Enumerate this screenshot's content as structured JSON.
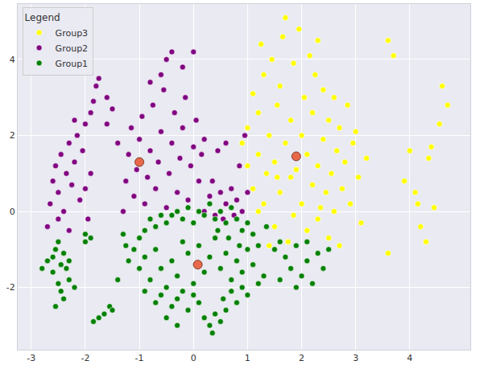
{
  "chart_data": {
    "type": "scatter",
    "legend_title": "Legend",
    "legend": "upper left",
    "grid": true,
    "xlim": [
      -3.25,
      5.12
    ],
    "xticks": [
      -3,
      -2,
      -1,
      0,
      1,
      2,
      3,
      4
    ],
    "ylim": [
      -3.64,
      5.46
    ],
    "yticks": [
      -2,
      0,
      2,
      4
    ],
    "series": [
      {
        "name": "Group3",
        "color": "#ffff00",
        "marker": "circle",
        "points": [
          [
            0.9,
            1.8
          ],
          [
            1.0,
            1.2
          ],
          [
            1.0,
            2.2
          ],
          [
            1.1,
            0.6
          ],
          [
            1.1,
            3.1
          ],
          [
            1.2,
            1.5
          ],
          [
            1.2,
            2.6
          ],
          [
            1.3,
            0.2
          ],
          [
            1.3,
            3.6
          ],
          [
            1.35,
            1.0
          ],
          [
            1.4,
            2.0
          ],
          [
            1.45,
            4.0
          ],
          [
            1.5,
            -0.4
          ],
          [
            1.5,
            1.3
          ],
          [
            1.55,
            2.8
          ],
          [
            1.6,
            0.5
          ],
          [
            1.6,
            3.3
          ],
          [
            1.65,
            4.6
          ],
          [
            1.7,
            1.8
          ],
          [
            1.7,
            5.1
          ],
          [
            1.75,
            -0.8
          ],
          [
            1.8,
            0.9
          ],
          [
            1.8,
            2.4
          ],
          [
            1.85,
            3.9
          ],
          [
            1.9,
            1.1
          ],
          [
            1.95,
            4.8
          ],
          [
            2.0,
            0.2
          ],
          [
            2.0,
            2.0
          ],
          [
            2.05,
            3.0
          ],
          [
            2.1,
            -0.5
          ],
          [
            2.1,
            1.5
          ],
          [
            2.15,
            4.1
          ],
          [
            2.2,
            0.7
          ],
          [
            2.2,
            2.6
          ],
          [
            2.25,
            3.6
          ],
          [
            2.3,
            -0.2
          ],
          [
            2.3,
            1.2
          ],
          [
            2.35,
            0.1
          ],
          [
            2.4,
            1.9
          ],
          [
            2.4,
            3.2
          ],
          [
            2.45,
            0.5
          ],
          [
            2.5,
            -0.7
          ],
          [
            2.5,
            2.4
          ],
          [
            2.55,
            1.0
          ],
          [
            2.6,
            0.0
          ],
          [
            2.6,
            3.0
          ],
          [
            2.65,
            1.6
          ],
          [
            2.7,
            -0.9
          ],
          [
            2.7,
            2.2
          ],
          [
            2.75,
            0.6
          ],
          [
            2.8,
            1.3
          ],
          [
            2.85,
            2.8
          ],
          [
            2.9,
            0.2
          ],
          [
            2.95,
            1.8
          ],
          [
            3.0,
            2.1
          ],
          [
            3.05,
            0.9
          ],
          [
            3.1,
            -0.3
          ],
          [
            3.2,
            1.4
          ],
          [
            2.3,
            4.5
          ],
          [
            1.4,
            -0.9
          ],
          [
            1.25,
            4.4
          ],
          [
            3.6,
            4.5
          ],
          [
            3.7,
            4.1
          ],
          [
            3.6,
            -1.1
          ],
          [
            4.0,
            1.6
          ],
          [
            4.1,
            0.5
          ],
          [
            4.15,
            0.2
          ],
          [
            4.2,
            -0.4
          ],
          [
            4.3,
            -0.8
          ],
          [
            4.35,
            1.4
          ],
          [
            4.4,
            1.7
          ],
          [
            4.45,
            0.1
          ],
          [
            4.55,
            2.3
          ],
          [
            4.6,
            3.3
          ],
          [
            4.7,
            2.8
          ],
          [
            3.9,
            0.8
          ],
          [
            1.2,
            0.0
          ],
          [
            1.55,
            0.9
          ],
          [
            1.85,
            -0.1
          ]
        ]
      },
      {
        "name": "Group2",
        "color": "#800080",
        "marker": "circle",
        "points": [
          [
            -2.7,
            -0.4
          ],
          [
            -2.65,
            0.2
          ],
          [
            -2.6,
            0.8
          ],
          [
            -2.55,
            1.2
          ],
          [
            -2.5,
            0.5
          ],
          [
            -2.45,
            1.5
          ],
          [
            -2.4,
            0.0
          ],
          [
            -2.35,
            1.0
          ],
          [
            -2.3,
            1.8
          ],
          [
            -2.25,
            0.7
          ],
          [
            -2.2,
            1.3
          ],
          [
            -2.15,
            2.0
          ],
          [
            -2.1,
            0.3
          ],
          [
            -2.05,
            1.6
          ],
          [
            -2.0,
            2.3
          ],
          [
            -1.95,
            -0.2
          ],
          [
            -1.9,
            2.6
          ],
          [
            -1.85,
            2.9
          ],
          [
            -1.8,
            3.3
          ],
          [
            -1.75,
            3.5
          ],
          [
            -1.9,
            1.0
          ],
          [
            -2.0,
            0.6
          ],
          [
            -2.3,
            -0.5
          ],
          [
            -2.5,
            -0.2
          ],
          [
            -2.2,
            2.4
          ],
          [
            -1.6,
            3.0
          ],
          [
            -1.3,
            0.0
          ],
          [
            -1.25,
            0.8
          ],
          [
            -1.2,
            1.5
          ],
          [
            -1.15,
            2.2
          ],
          [
            -1.1,
            0.4
          ],
          [
            -1.05,
            1.1
          ],
          [
            -1.0,
            1.9
          ],
          [
            -0.95,
            2.5
          ],
          [
            -0.9,
            0.2
          ],
          [
            -0.85,
            0.9
          ],
          [
            -0.8,
            1.6
          ],
          [
            -0.75,
            2.8
          ],
          [
            -0.7,
            0.6
          ],
          [
            -0.65,
            1.3
          ],
          [
            -0.6,
            2.1
          ],
          [
            -0.55,
            3.2
          ],
          [
            -0.5,
            0.1
          ],
          [
            -0.45,
            1.0
          ],
          [
            -0.4,
            1.8
          ],
          [
            -0.35,
            2.6
          ],
          [
            -0.3,
            0.5
          ],
          [
            -0.25,
            1.4
          ],
          [
            -0.2,
            2.2
          ],
          [
            -0.15,
            3.0
          ],
          [
            -0.1,
            0.3
          ],
          [
            -0.05,
            1.2
          ],
          [
            0.0,
            1.7
          ],
          [
            0.05,
            2.4
          ],
          [
            0.1,
            0.8
          ],
          [
            0.15,
            1.5
          ],
          [
            0.2,
            1.9
          ],
          [
            -0.6,
            3.6
          ],
          [
            -0.5,
            4.0
          ],
          [
            -0.4,
            4.2
          ],
          [
            -0.2,
            3.8
          ],
          [
            0.0,
            4.2
          ],
          [
            -0.8,
            3.4
          ],
          [
            -1.4,
            1.8
          ],
          [
            -1.5,
            2.7
          ],
          [
            -1.6,
            2.3
          ],
          [
            0.2,
            0.0
          ],
          [
            0.3,
            0.4
          ],
          [
            0.4,
            -0.1
          ],
          [
            0.5,
            0.5
          ],
          [
            0.6,
            0.2
          ],
          [
            0.7,
            0.6
          ],
          [
            0.8,
            0.3
          ],
          [
            0.9,
            0.0
          ],
          [
            1.0,
            0.5
          ],
          [
            0.35,
            0.8
          ],
          [
            0.55,
            -0.2
          ],
          [
            0.75,
            -0.1
          ],
          [
            0.85,
            1.2
          ],
          [
            0.95,
            2.0
          ],
          [
            0.6,
            1.8
          ],
          [
            0.45,
            1.6
          ]
        ]
      },
      {
        "name": "Group1",
        "color": "#008000",
        "marker": "circle",
        "points": [
          [
            -2.8,
            -1.5
          ],
          [
            -2.7,
            -1.3
          ],
          [
            -2.6,
            -1.2
          ],
          [
            -2.55,
            -1.0
          ],
          [
            -2.5,
            -0.8
          ],
          [
            -2.45,
            -1.4
          ],
          [
            -2.6,
            -1.6
          ],
          [
            -2.4,
            -1.1
          ],
          [
            -2.35,
            -1.5
          ],
          [
            -2.3,
            -1.3
          ],
          [
            -2.5,
            -1.9
          ],
          [
            -2.45,
            -2.1
          ],
          [
            -2.4,
            -2.3
          ],
          [
            -2.55,
            -2.5
          ],
          [
            -2.3,
            -1.8
          ],
          [
            -2.2,
            -2.0
          ],
          [
            -2.0,
            -0.6
          ],
          [
            -1.9,
            -0.7
          ],
          [
            -2.0,
            -0.8
          ],
          [
            -1.85,
            -2.9
          ],
          [
            -1.75,
            -2.8
          ],
          [
            -1.65,
            -2.7
          ],
          [
            -1.55,
            -2.5
          ],
          [
            -1.5,
            -2.6
          ],
          [
            -1.4,
            -1.8
          ],
          [
            -1.3,
            -0.6
          ],
          [
            -1.25,
            -0.9
          ],
          [
            -1.2,
            -1.3
          ],
          [
            -1.1,
            -1.0
          ],
          [
            -1.0,
            -0.7
          ],
          [
            -0.9,
            -0.5
          ],
          [
            -0.8,
            -0.2
          ],
          [
            -0.7,
            -0.4
          ],
          [
            -0.6,
            -0.1
          ],
          [
            -0.5,
            -0.3
          ],
          [
            -0.4,
            -0.1
          ],
          [
            -0.3,
            0.0
          ],
          [
            -0.2,
            -0.2
          ],
          [
            -0.1,
            0.1
          ],
          [
            0.0,
            -0.3
          ],
          [
            0.1,
            0.0
          ],
          [
            0.2,
            -0.1
          ],
          [
            0.3,
            0.2
          ],
          [
            0.4,
            -0.2
          ],
          [
            0.5,
            0.0
          ],
          [
            0.6,
            -0.3
          ],
          [
            0.7,
            0.1
          ],
          [
            0.8,
            -0.2
          ],
          [
            0.9,
            -0.5
          ],
          [
            1.0,
            -0.3
          ],
          [
            1.1,
            -0.6
          ],
          [
            1.2,
            -0.9
          ],
          [
            -1.0,
            -1.5
          ],
          [
            -0.9,
            -1.2
          ],
          [
            -0.8,
            -1.8
          ],
          [
            -0.7,
            -1.0
          ],
          [
            -0.6,
            -1.5
          ],
          [
            -0.5,
            -2.0
          ],
          [
            -0.4,
            -1.3
          ],
          [
            -0.3,
            -1.7
          ],
          [
            -0.2,
            -0.8
          ],
          [
            -0.1,
            -1.1
          ],
          [
            0.0,
            -1.9
          ],
          [
            0.1,
            -0.9
          ],
          [
            0.2,
            -1.6
          ],
          [
            0.3,
            -1.2
          ],
          [
            0.4,
            -0.7
          ],
          [
            0.5,
            -1.5
          ],
          [
            0.6,
            -1.1
          ],
          [
            0.7,
            -1.8
          ],
          [
            0.8,
            -1.3
          ],
          [
            0.9,
            -1.6
          ],
          [
            1.0,
            -1.0
          ],
          [
            1.1,
            -1.4
          ],
          [
            1.2,
            -1.9
          ],
          [
            0.45,
            -0.5
          ],
          [
            0.65,
            -0.7
          ],
          [
            0.85,
            -0.9
          ],
          [
            -0.9,
            -2.1
          ],
          [
            -0.7,
            -2.4
          ],
          [
            -0.6,
            -2.2
          ],
          [
            -0.4,
            -2.5
          ],
          [
            -0.3,
            -2.3
          ],
          [
            -0.2,
            -2.1
          ],
          [
            -0.1,
            -2.6
          ],
          [
            0.1,
            -2.4
          ],
          [
            0.2,
            -2.8
          ],
          [
            0.3,
            -3.0
          ],
          [
            0.35,
            -3.2
          ],
          [
            0.4,
            -2.7
          ],
          [
            0.5,
            -2.9
          ],
          [
            0.55,
            -2.3
          ],
          [
            0.6,
            -2.6
          ],
          [
            0.7,
            -2.1
          ],
          [
            0.8,
            -2.4
          ],
          [
            0.9,
            -2.0
          ],
          [
            1.0,
            -2.2
          ],
          [
            -0.5,
            -2.8
          ],
          [
            -0.3,
            -3.0
          ],
          [
            0.0,
            -2.2
          ],
          [
            1.5,
            -1.0
          ],
          [
            1.6,
            -0.8
          ],
          [
            1.7,
            -1.2
          ],
          [
            1.8,
            -1.5
          ],
          [
            1.9,
            -0.9
          ],
          [
            2.0,
            -1.7
          ],
          [
            2.1,
            -1.3
          ],
          [
            2.2,
            -1.9
          ],
          [
            2.3,
            -1.1
          ],
          [
            2.4,
            -1.5
          ],
          [
            2.5,
            -1.0
          ],
          [
            1.6,
            -1.8
          ],
          [
            1.9,
            -2.0
          ],
          [
            2.1,
            -0.8
          ],
          [
            1.3,
            -1.7
          ],
          [
            1.35,
            -0.4
          ]
        ]
      },
      {
        "color": "#e8694a",
        "marker": "circle",
        "points": [
          [
            -1.0,
            1.3
          ],
          [
            0.08,
            -1.4
          ],
          [
            1.9,
            1.45
          ]
        ]
      }
    ]
  }
}
